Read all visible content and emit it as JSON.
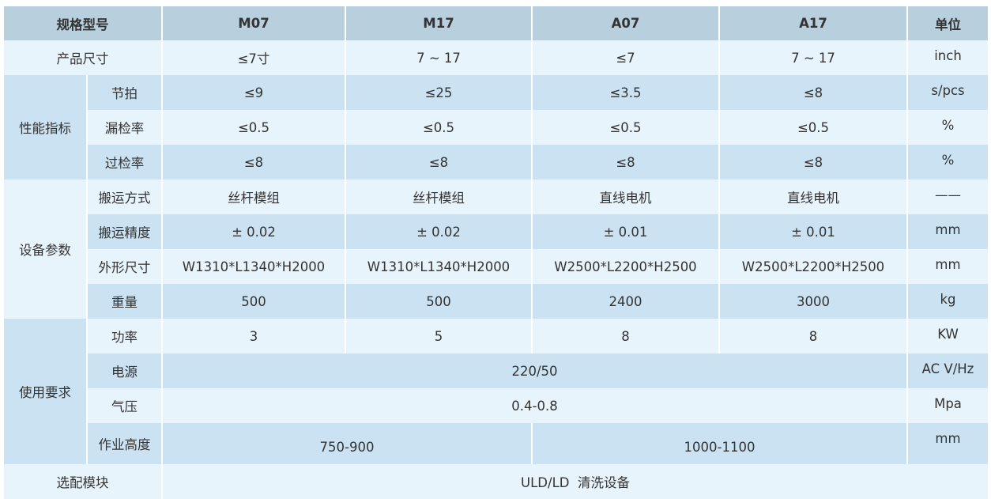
{
  "header": {
    "model": "规格型号",
    "cols": [
      "M07",
      "M17",
      "A07",
      "A17"
    ],
    "unit": "单位"
  },
  "rows": {
    "size": {
      "label": "产品尺寸",
      "values": [
        "≤7寸",
        "7 ~ 17",
        "≤7",
        "7 ~ 17"
      ],
      "unit": "inch"
    },
    "perf": {
      "label": "性能指标",
      "items": [
        {
          "label": "节拍",
          "values": [
            "≤9",
            "≤25",
            "≤3.5",
            "≤8"
          ],
          "unit": "s/pcs"
        },
        {
          "label": "漏检率",
          "values": [
            "≤0.5",
            "≤0.5",
            "≤0.5",
            "≤0.5"
          ],
          "unit": "%"
        },
        {
          "label": "过检率",
          "values": [
            "≤8",
            "≤8",
            "≤8",
            "≤8"
          ],
          "unit": "%"
        }
      ]
    },
    "equip": {
      "label": "设备参数",
      "items": [
        {
          "label": "搬运方式",
          "values": [
            "丝杆模组",
            "丝杆模组",
            "直线电机",
            "直线电机"
          ],
          "unit": "——"
        },
        {
          "label": "搬运精度",
          "values": [
            "± 0.02",
            "± 0.02",
            "± 0.01",
            "± 0.01"
          ],
          "unit": "mm"
        },
        {
          "label": "外形尺寸",
          "values": [
            "W1310*L1340*H2000",
            "W1310*L1340*H2000",
            "W2500*L2200*H2500",
            "W2500*L2200*H2500"
          ],
          "unit": "mm"
        },
        {
          "label": "重量",
          "values": [
            "500",
            "500",
            "2400",
            "3000"
          ],
          "unit": "kg"
        }
      ]
    },
    "usage": {
      "label": "使用要求",
      "power": {
        "label": "功率",
        "values": [
          "3",
          "5",
          "8",
          "8"
        ],
        "unit": "KW"
      },
      "supply": {
        "label": "电源",
        "value": "220/50",
        "unit": "AC V/Hz"
      },
      "air": {
        "label": "气压",
        "value": "0.4-0.8",
        "unit": "Mpa"
      },
      "height": {
        "label": "作业高度",
        "values": [
          "750-900",
          "1000-1100"
        ],
        "unit": "mm"
      }
    },
    "options": {
      "label": "选配模块",
      "value": "ULD/LD  清洗设备"
    }
  },
  "colors": {
    "header": "#b8cfde",
    "row_medium": "#cae2f2",
    "row_light": "#e8f4fc"
  }
}
